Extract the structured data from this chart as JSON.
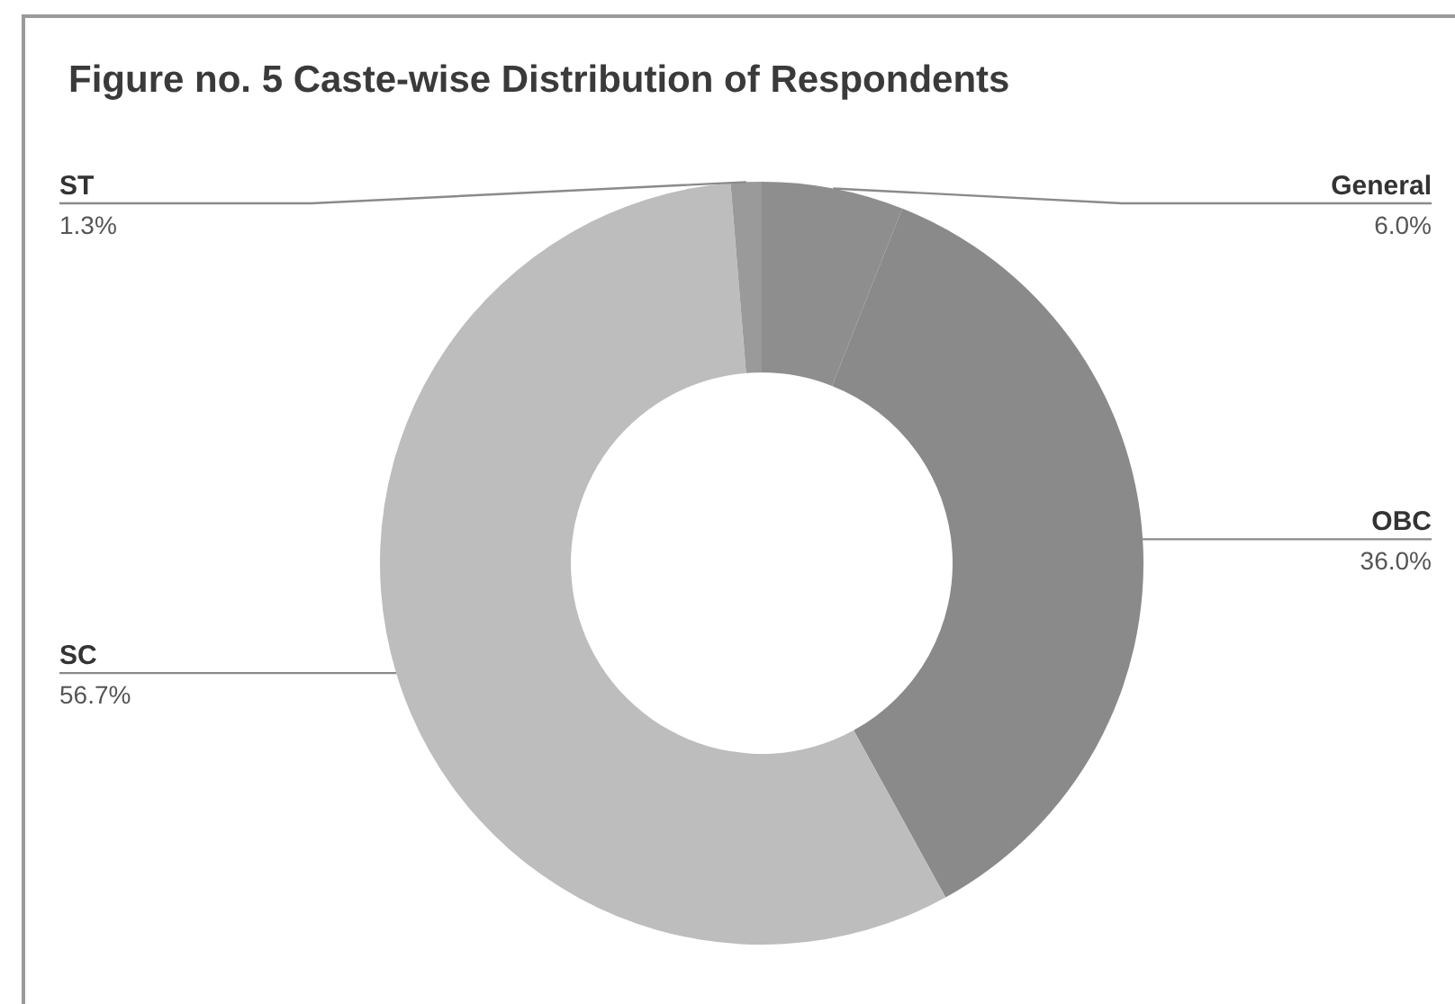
{
  "chart_data": {
    "type": "donut",
    "title": "Figure no. 5 Caste-wise Distribution of Respondents",
    "categories": [
      "General",
      "OBC",
      "SC",
      "ST"
    ],
    "values": [
      6.0,
      36.0,
      56.7,
      1.3
    ],
    "colors": [
      "#8e8e8e",
      "#8a8a8a",
      "#bdbdbd",
      "#9a9a9a"
    ],
    "value_labels": [
      "6.0%",
      "36.0%",
      "56.7%",
      "1.3%"
    ]
  }
}
